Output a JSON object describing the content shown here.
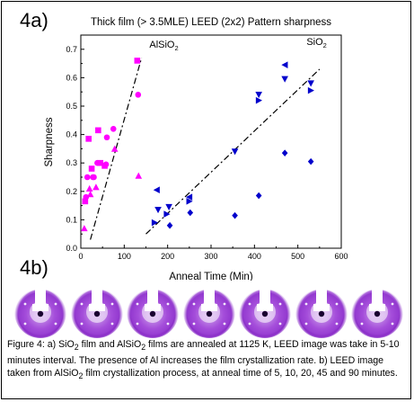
{
  "panel_a_label": "4a)",
  "panel_b_label": "4b)",
  "chart_data": {
    "type": "scatter",
    "title": "Thick film (> 3.5MLE) LEED (2x2) Pattern sharpness",
    "xlabel": "Anneal Time (Min)",
    "ylabel": "Sharpness",
    "xlim": [
      0,
      600
    ],
    "ylim": [
      0,
      0.75
    ],
    "xticks": [
      0,
      100,
      200,
      300,
      400,
      500,
      600
    ],
    "yticks": [
      0.0,
      0.1,
      0.2,
      0.3,
      0.4,
      0.5,
      0.6,
      0.7
    ],
    "xtick_labels": [
      "0",
      "100",
      "200",
      "300",
      "400",
      "500",
      "600"
    ],
    "ytick_labels": [
      "0.0",
      "0.1",
      "0.2",
      "0.3",
      "0.4",
      "0.5",
      "0.6",
      "0.7"
    ],
    "grid": false,
    "annotations": [
      {
        "text": "AlSiO",
        "sub": "2",
        "x": 158,
        "y": 0.705
      },
      {
        "text": "SiO",
        "sub": "2",
        "x": 520,
        "y": 0.715
      }
    ],
    "series": [
      {
        "color": "#ff00ff",
        "points": [
          {
            "x": 8,
            "y": 0.07,
            "m": "triangle-up"
          },
          {
            "x": 10,
            "y": 0.165,
            "m": "square"
          },
          {
            "x": 12,
            "y": 0.18,
            "m": "circle"
          },
          {
            "x": 15,
            "y": 0.25,
            "m": "circle"
          },
          {
            "x": 18,
            "y": 0.385,
            "m": "square"
          },
          {
            "x": 20,
            "y": 0.21,
            "m": "triangle-up"
          },
          {
            "x": 22,
            "y": 0.19,
            "m": "triangle-up"
          },
          {
            "x": 25,
            "y": 0.28,
            "m": "square"
          },
          {
            "x": 28,
            "y": 0.25,
            "m": "circle"
          },
          {
            "x": 30,
            "y": 0.25,
            "m": "circle"
          },
          {
            "x": 35,
            "y": 0.215,
            "m": "triangle-up"
          },
          {
            "x": 38,
            "y": 0.3,
            "m": "circle"
          },
          {
            "x": 40,
            "y": 0.415,
            "m": "square"
          },
          {
            "x": 45,
            "y": 0.3,
            "m": "square"
          },
          {
            "x": 55,
            "y": 0.29,
            "m": "square"
          },
          {
            "x": 58,
            "y": 0.295,
            "m": "circle"
          },
          {
            "x": 60,
            "y": 0.39,
            "m": "circle"
          },
          {
            "x": 75,
            "y": 0.42,
            "m": "circle"
          },
          {
            "x": 78,
            "y": 0.35,
            "m": "triangle-up"
          },
          {
            "x": 130,
            "y": 0.66,
            "m": "square"
          },
          {
            "x": 132,
            "y": 0.54,
            "m": "circle"
          },
          {
            "x": 133,
            "y": 0.255,
            "m": "triangle-up"
          }
        ]
      },
      {
        "color": "#0000cc",
        "points": [
          {
            "x": 170,
            "y": 0.09,
            "m": "triangle-right"
          },
          {
            "x": 175,
            "y": 0.205,
            "m": "triangle-left"
          },
          {
            "x": 178,
            "y": 0.135,
            "m": "triangle-down"
          },
          {
            "x": 198,
            "y": 0.12,
            "m": "triangle-right"
          },
          {
            "x": 203,
            "y": 0.145,
            "m": "triangle-down"
          },
          {
            "x": 205,
            "y": 0.08,
            "m": "diamond"
          },
          {
            "x": 250,
            "y": 0.18,
            "m": "triangle-left"
          },
          {
            "x": 250,
            "y": 0.165,
            "m": "triangle-right"
          },
          {
            "x": 252,
            "y": 0.125,
            "m": "diamond"
          },
          {
            "x": 355,
            "y": 0.34,
            "m": "triangle-down"
          },
          {
            "x": 355,
            "y": 0.115,
            "m": "diamond"
          },
          {
            "x": 410,
            "y": 0.54,
            "m": "triangle-down"
          },
          {
            "x": 410,
            "y": 0.52,
            "m": "triangle-right"
          },
          {
            "x": 410,
            "y": 0.185,
            "m": "diamond"
          },
          {
            "x": 470,
            "y": 0.645,
            "m": "triangle-left"
          },
          {
            "x": 470,
            "y": 0.595,
            "m": "triangle-down"
          },
          {
            "x": 470,
            "y": 0.335,
            "m": "diamond"
          },
          {
            "x": 530,
            "y": 0.58,
            "m": "triangle-down"
          },
          {
            "x": 530,
            "y": 0.555,
            "m": "triangle-right"
          },
          {
            "x": 530,
            "y": 0.305,
            "m": "diamond"
          }
        ]
      }
    ],
    "trend_lines": [
      {
        "x": [
          22,
          140
        ],
        "y": [
          0.03,
          0.67
        ]
      },
      {
        "x": [
          150,
          550
        ],
        "y": [
          0.05,
          0.63
        ]
      }
    ]
  },
  "leed_images": [
    {
      "index": 1
    },
    {
      "index": 2
    },
    {
      "index": 3
    },
    {
      "index": 4
    },
    {
      "index": 5
    },
    {
      "index": 6
    },
    {
      "index": 7
    }
  ],
  "caption": {
    "p1": "Figure 4: a) SiO",
    "sub1": "2",
    "p2": " film and AlSiO",
    "sub2": "2",
    "p3": " films are annealed at 1125 K, LEED image was take in 5-10 minutes interval. The presence of Al increases the film crystallization rate. b) LEED image taken from AlSiO",
    "sub3": "2",
    "p4": " film crystallization process, at anneal time of 5, 10, 20, 45 and 90 minutes."
  }
}
